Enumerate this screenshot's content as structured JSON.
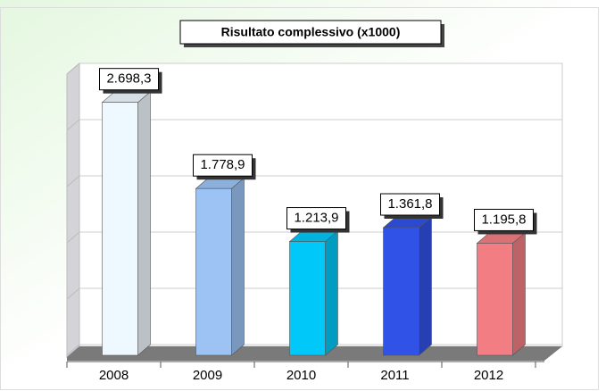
{
  "chart_data": {
    "type": "bar3d",
    "title": "Risultato complessivo (x1000)",
    "categories": [
      "2008",
      "2009",
      "2010",
      "2011",
      "2012"
    ],
    "values": [
      2698.3,
      1778.9,
      1213.9,
      1361.8,
      1195.8
    ],
    "value_labels": [
      "2.698,3",
      "1.778,9",
      "1.213,9",
      "1.361,8",
      "1.195,8"
    ],
    "colors": [
      "#eef8ff",
      "#9cc3f4",
      "#00c8f8",
      "#3152e6",
      "#f27e84"
    ],
    "ylim": [
      0,
      3000
    ],
    "yticks": [
      0,
      600,
      1200,
      1800,
      2400,
      3000
    ],
    "grid": true
  }
}
